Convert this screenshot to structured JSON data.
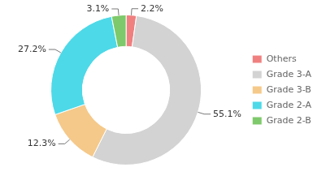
{
  "chart_data": {
    "type": "doughnut",
    "categories": [
      "Others",
      "Grade 3-A",
      "Grade 3-B",
      "Grade 2-A",
      "Grade 2-B"
    ],
    "values": [
      2.2,
      55.1,
      12.3,
      27.2,
      3.1
    ],
    "value_labels": [
      "2.2%",
      "55.1%",
      "12.3%",
      "27.2%",
      "3.1%"
    ],
    "colors": [
      "#f08080",
      "#d3d3d3",
      "#f5c98a",
      "#4dd9e8",
      "#7ec96b"
    ],
    "data_labels": true,
    "legend": "right"
  }
}
